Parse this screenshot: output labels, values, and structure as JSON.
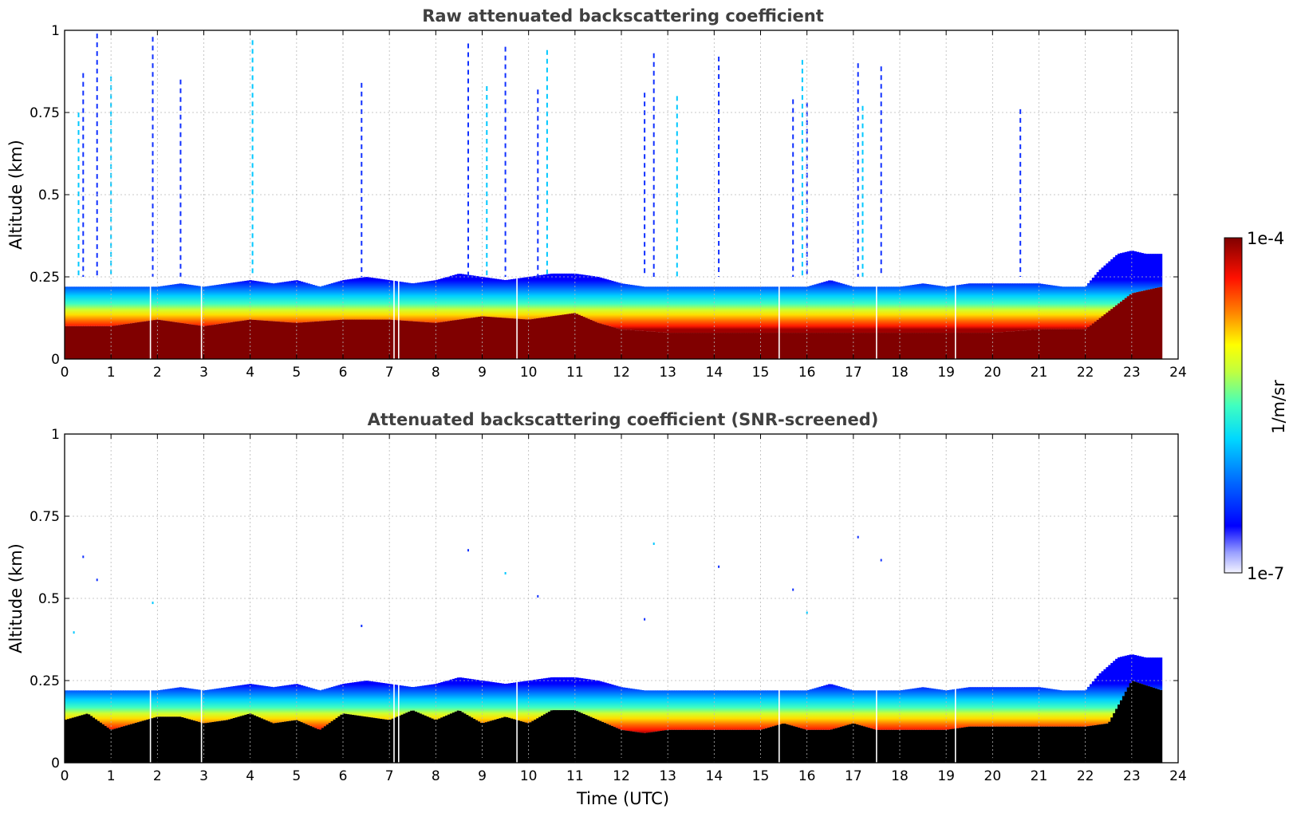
{
  "chart_data": [
    {
      "type": "heatmap",
      "title": "Raw attenuated backscattering coefficient",
      "xlabel": "",
      "ylabel": "Altitude (km)",
      "xlim": [
        0,
        24
      ],
      "ylim": [
        0,
        1
      ],
      "xticks": [
        "0",
        "1",
        "2",
        "3",
        "4",
        "5",
        "6",
        "7",
        "8",
        "9",
        "10",
        "11",
        "12",
        "13",
        "14",
        "15",
        "16",
        "17",
        "18",
        "19",
        "20",
        "21",
        "22",
        "23",
        "24"
      ],
      "yticks": [
        "0",
        "0.25",
        "0.5",
        "0.75",
        "1"
      ],
      "grid": true,
      "masked_near_surface": false,
      "boundary_layer_top_km": [
        [
          0,
          0.22
        ],
        [
          0.5,
          0.22
        ],
        [
          1,
          0.22
        ],
        [
          1.5,
          0.22
        ],
        [
          2,
          0.22
        ],
        [
          2.5,
          0.23
        ],
        [
          3,
          0.22
        ],
        [
          3.5,
          0.23
        ],
        [
          4,
          0.24
        ],
        [
          4.5,
          0.23
        ],
        [
          5,
          0.24
        ],
        [
          5.5,
          0.22
        ],
        [
          6,
          0.24
        ],
        [
          6.5,
          0.25
        ],
        [
          7,
          0.24
        ],
        [
          7.5,
          0.23
        ],
        [
          8,
          0.24
        ],
        [
          8.5,
          0.26
        ],
        [
          9,
          0.25
        ],
        [
          9.5,
          0.24
        ],
        [
          10,
          0.25
        ],
        [
          10.5,
          0.26
        ],
        [
          11,
          0.26
        ],
        [
          11.5,
          0.25
        ],
        [
          12,
          0.23
        ],
        [
          12.5,
          0.22
        ],
        [
          13,
          0.22
        ],
        [
          13.5,
          0.22
        ],
        [
          14,
          0.22
        ],
        [
          14.5,
          0.22
        ],
        [
          15,
          0.22
        ],
        [
          15.5,
          0.22
        ],
        [
          16,
          0.22
        ],
        [
          16.5,
          0.24
        ],
        [
          17,
          0.22
        ],
        [
          17.5,
          0.22
        ],
        [
          18,
          0.22
        ],
        [
          18.5,
          0.23
        ],
        [
          19,
          0.22
        ],
        [
          19.5,
          0.23
        ],
        [
          20,
          0.23
        ],
        [
          20.5,
          0.23
        ],
        [
          21,
          0.23
        ],
        [
          21.5,
          0.22
        ],
        [
          22,
          0.22
        ],
        [
          22.3,
          0.27
        ],
        [
          22.7,
          0.32
        ],
        [
          23,
          0.33
        ],
        [
          23.3,
          0.32
        ],
        [
          23.65,
          0.32
        ]
      ],
      "saturated_layer_top_km": [
        [
          0,
          0.1
        ],
        [
          1,
          0.1
        ],
        [
          2,
          0.12
        ],
        [
          3,
          0.1
        ],
        [
          4,
          0.12
        ],
        [
          5,
          0.11
        ],
        [
          6,
          0.12
        ],
        [
          7,
          0.12
        ],
        [
          8,
          0.11
        ],
        [
          9,
          0.13
        ],
        [
          10,
          0.12
        ],
        [
          11,
          0.14
        ],
        [
          11.5,
          0.11
        ],
        [
          12,
          0.09
        ],
        [
          13,
          0.08
        ],
        [
          14,
          0.08
        ],
        [
          15,
          0.08
        ],
        [
          16,
          0.08
        ],
        [
          17,
          0.08
        ],
        [
          18,
          0.08
        ],
        [
          19,
          0.08
        ],
        [
          20,
          0.08
        ],
        [
          21,
          0.09
        ],
        [
          22,
          0.09
        ],
        [
          23,
          0.2
        ],
        [
          23.65,
          0.22
        ]
      ],
      "sparse_cloud_columns_utc": [
        0.3,
        0.4,
        0.7,
        1.0,
        1.9,
        2.5,
        4.05,
        6.4,
        8.7,
        9.1,
        9.5,
        10.2,
        10.4,
        12.5,
        12.7,
        13.2,
        14.1,
        15.7,
        15.9,
        16.0,
        17.1,
        17.2,
        17.6,
        20.6
      ],
      "missing_data_utc": [
        1.85,
        2.95,
        7.1,
        7.2,
        9.75,
        15.4,
        17.5,
        19.2
      ],
      "data_end_utc": 23.65
    },
    {
      "type": "heatmap",
      "title": "Attenuated backscattering coefficient (SNR-screened)",
      "xlabel": "Time (UTC)",
      "ylabel": "Altitude (km)",
      "xlim": [
        0,
        24
      ],
      "ylim": [
        0,
        1
      ],
      "xticks": [
        "0",
        "1",
        "2",
        "3",
        "4",
        "5",
        "6",
        "7",
        "8",
        "9",
        "10",
        "11",
        "12",
        "13",
        "14",
        "15",
        "16",
        "17",
        "18",
        "19",
        "20",
        "21",
        "22",
        "23",
        "24"
      ],
      "yticks": [
        "0",
        "0.25",
        "0.5",
        "0.75",
        "1"
      ],
      "grid": true,
      "masked_near_surface": true,
      "boundary_layer_top_km": [
        [
          0,
          0.22
        ],
        [
          0.5,
          0.22
        ],
        [
          1,
          0.22
        ],
        [
          1.5,
          0.22
        ],
        [
          2,
          0.22
        ],
        [
          2.5,
          0.23
        ],
        [
          3,
          0.22
        ],
        [
          3.5,
          0.23
        ],
        [
          4,
          0.24
        ],
        [
          4.5,
          0.23
        ],
        [
          5,
          0.24
        ],
        [
          5.5,
          0.22
        ],
        [
          6,
          0.24
        ],
        [
          6.5,
          0.25
        ],
        [
          7,
          0.24
        ],
        [
          7.5,
          0.23
        ],
        [
          8,
          0.24
        ],
        [
          8.5,
          0.26
        ],
        [
          9,
          0.25
        ],
        [
          9.5,
          0.24
        ],
        [
          10,
          0.25
        ],
        [
          10.5,
          0.26
        ],
        [
          11,
          0.26
        ],
        [
          11.5,
          0.25
        ],
        [
          12,
          0.23
        ],
        [
          12.5,
          0.22
        ],
        [
          13,
          0.22
        ],
        [
          13.5,
          0.22
        ],
        [
          14,
          0.22
        ],
        [
          14.5,
          0.22
        ],
        [
          15,
          0.22
        ],
        [
          15.5,
          0.22
        ],
        [
          16,
          0.22
        ],
        [
          16.5,
          0.24
        ],
        [
          17,
          0.22
        ],
        [
          17.5,
          0.22
        ],
        [
          18,
          0.22
        ],
        [
          18.5,
          0.23
        ],
        [
          19,
          0.22
        ],
        [
          19.5,
          0.23
        ],
        [
          20,
          0.23
        ],
        [
          20.5,
          0.23
        ],
        [
          21,
          0.23
        ],
        [
          21.5,
          0.22
        ],
        [
          22,
          0.22
        ],
        [
          22.3,
          0.27
        ],
        [
          22.7,
          0.32
        ],
        [
          23,
          0.33
        ],
        [
          23.3,
          0.32
        ],
        [
          23.65,
          0.32
        ]
      ],
      "screened_layer_top_km": [
        [
          0,
          0.13
        ],
        [
          0.5,
          0.15
        ],
        [
          1,
          0.1
        ],
        [
          1.5,
          0.12
        ],
        [
          2,
          0.14
        ],
        [
          2.5,
          0.14
        ],
        [
          3,
          0.12
        ],
        [
          3.5,
          0.13
        ],
        [
          4,
          0.15
        ],
        [
          4.5,
          0.12
        ],
        [
          5,
          0.13
        ],
        [
          5.5,
          0.1
        ],
        [
          6,
          0.15
        ],
        [
          6.5,
          0.14
        ],
        [
          7,
          0.13
        ],
        [
          7.5,
          0.16
        ],
        [
          8,
          0.13
        ],
        [
          8.5,
          0.16
        ],
        [
          9,
          0.12
        ],
        [
          9.5,
          0.14
        ],
        [
          10,
          0.12
        ],
        [
          10.5,
          0.16
        ],
        [
          11,
          0.16
        ],
        [
          11.5,
          0.13
        ],
        [
          12,
          0.1
        ],
        [
          12.5,
          0.09
        ],
        [
          13,
          0.1
        ],
        [
          13.5,
          0.1
        ],
        [
          14,
          0.1
        ],
        [
          14.5,
          0.1
        ],
        [
          15,
          0.1
        ],
        [
          15.5,
          0.12
        ],
        [
          16,
          0.1
        ],
        [
          16.5,
          0.1
        ],
        [
          17,
          0.12
        ],
        [
          17.5,
          0.1
        ],
        [
          18,
          0.1
        ],
        [
          18.5,
          0.1
        ],
        [
          19,
          0.1
        ],
        [
          19.5,
          0.11
        ],
        [
          20,
          0.11
        ],
        [
          20.5,
          0.11
        ],
        [
          21,
          0.11
        ],
        [
          21.5,
          0.11
        ],
        [
          22,
          0.11
        ],
        [
          22.5,
          0.12
        ],
        [
          23,
          0.25
        ],
        [
          23.65,
          0.22
        ]
      ],
      "sparse_cloud_columns_utc": [
        0.2,
        0.4,
        0.7,
        1.9,
        6.4,
        8.7,
        9.5,
        10.2,
        12.5,
        12.7,
        14.1,
        15.7,
        16.0,
        17.1,
        17.6
      ],
      "missing_data_utc": [
        1.85,
        2.95,
        7.1,
        7.2,
        9.75,
        15.4,
        17.5,
        19.2
      ],
      "data_end_utc": 23.65
    }
  ],
  "colorbar": {
    "label": "1/m/sr",
    "max_label": "1e-4",
    "min_label": "1e-7",
    "scale": "log",
    "colormap": "jet"
  }
}
